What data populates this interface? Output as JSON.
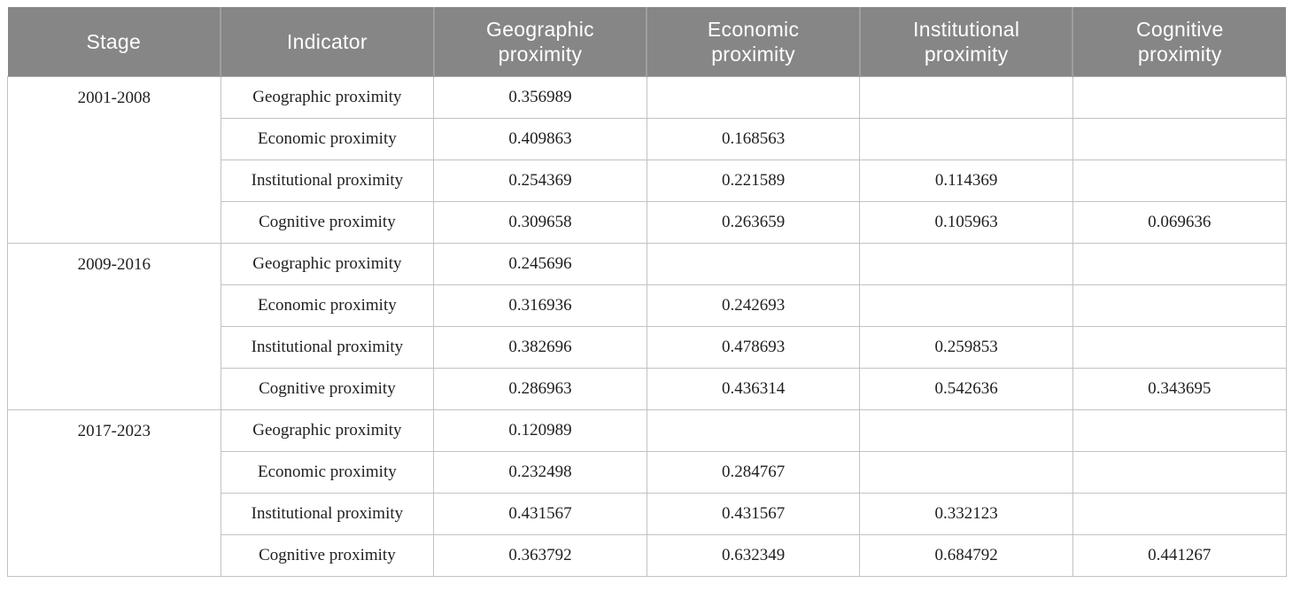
{
  "colors": {
    "header_bg": "#868686",
    "header_text": "#ffffff",
    "body_text": "#1f1f1f",
    "grid_line": "#c2c2c2",
    "group_line": "#adadad"
  },
  "chart_data": {
    "type": "table",
    "columns": [
      "Stage",
      "Indicator",
      "Geographic proximity",
      "Economic proximity",
      "Institutional proximity",
      "Cognitive proximity"
    ],
    "groups": [
      {
        "stage": "2001-2008",
        "rows": [
          {
            "indicator": "Geographic proximity",
            "values": [
              "0.356989",
              "",
              "",
              ""
            ]
          },
          {
            "indicator": "Economic proximity",
            "values": [
              "0.409863",
              "0.168563",
              "",
              ""
            ]
          },
          {
            "indicator": "Institutional proximity",
            "values": [
              "0.254369",
              "0.221589",
              "0.114369",
              ""
            ]
          },
          {
            "indicator": "Cognitive proximity",
            "values": [
              "0.309658",
              "0.263659",
              "0.105963",
              "0.069636"
            ]
          }
        ]
      },
      {
        "stage": "2009-2016",
        "rows": [
          {
            "indicator": "Geographic proximity",
            "values": [
              "0.245696",
              "",
              "",
              ""
            ]
          },
          {
            "indicator": "Economic proximity",
            "values": [
              "0.316936",
              "0.242693",
              "",
              ""
            ]
          },
          {
            "indicator": "Institutional proximity",
            "values": [
              "0.382696",
              "0.478693",
              "0.259853",
              ""
            ]
          },
          {
            "indicator": "Cognitive proximity",
            "values": [
              "0.286963",
              "0.436314",
              "0.542636",
              "0.343695"
            ]
          }
        ]
      },
      {
        "stage": "2017-2023",
        "rows": [
          {
            "indicator": "Geographic proximity",
            "values": [
              "0.120989",
              "",
              "",
              ""
            ]
          },
          {
            "indicator": "Economic proximity",
            "values": [
              "0.232498",
              "0.284767",
              "",
              ""
            ]
          },
          {
            "indicator": "Institutional proximity",
            "values": [
              "0.431567",
              "0.431567",
              "0.332123",
              ""
            ]
          },
          {
            "indicator": "Cognitive proximity",
            "values": [
              "0.363792",
              "0.632349",
              "0.684792",
              "0.441267"
            ]
          }
        ]
      }
    ]
  }
}
